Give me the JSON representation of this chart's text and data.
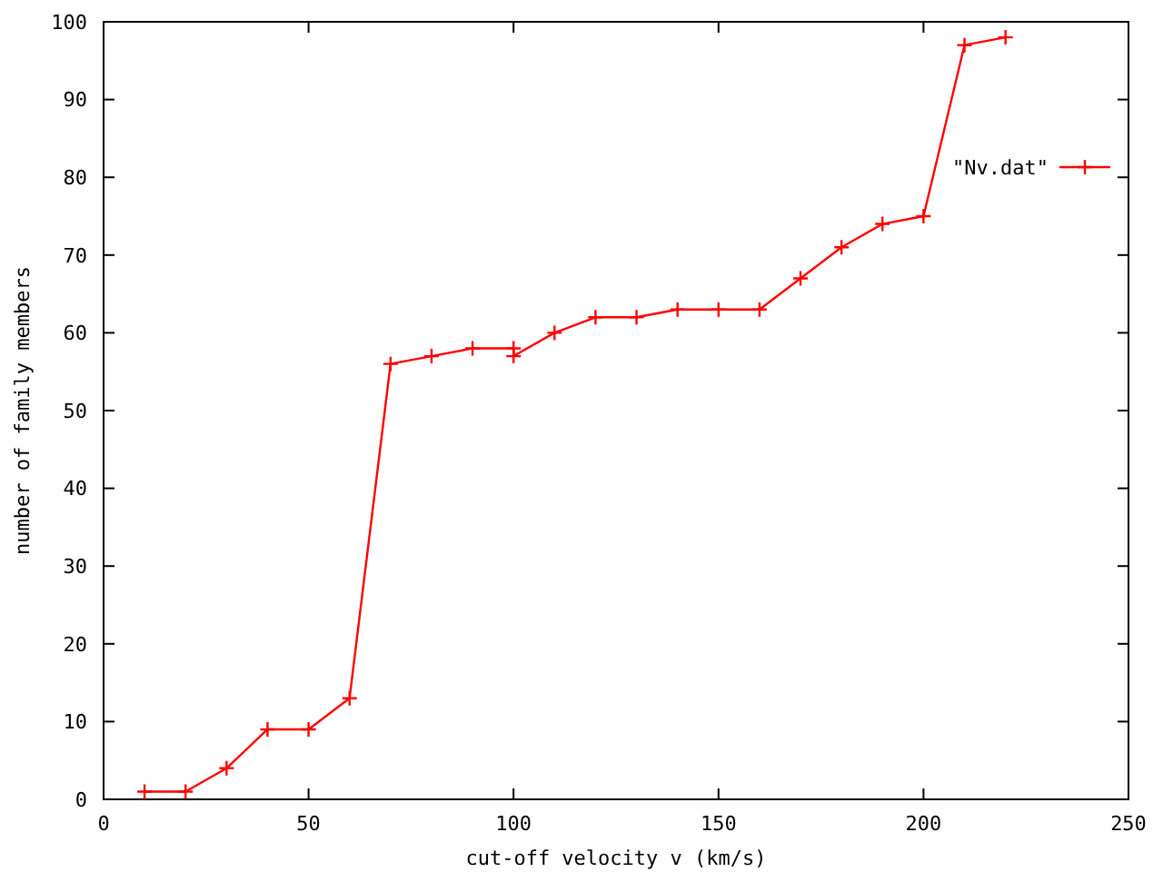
{
  "chart_data": {
    "type": "line",
    "xlabel": "cut-off velocity v (km/s)",
    "ylabel": "number of family members",
    "x": [
      10,
      20,
      30,
      40,
      50,
      60,
      70,
      80,
      90,
      100,
      100,
      110,
      120,
      130,
      140,
      150,
      160,
      170,
      180,
      190,
      200,
      210,
      220
    ],
    "series": [
      {
        "name": "\"Nv.dat\"",
        "color": "#ff0000",
        "values": [
          1,
          1,
          4,
          9,
          9,
          13,
          56,
          57,
          58,
          58,
          57,
          60,
          62,
          62,
          63,
          63,
          63,
          67,
          71,
          74,
          75,
          97,
          98
        ]
      }
    ],
    "xlim": [
      0,
      250
    ],
    "ylim": [
      0,
      100
    ],
    "xticks": [
      0,
      50,
      100,
      150,
      200,
      250
    ],
    "yticks": [
      0,
      10,
      20,
      30,
      40,
      50,
      60,
      70,
      80,
      90,
      100
    ],
    "marker": "cross",
    "legend": "top right",
    "grid": false
  }
}
